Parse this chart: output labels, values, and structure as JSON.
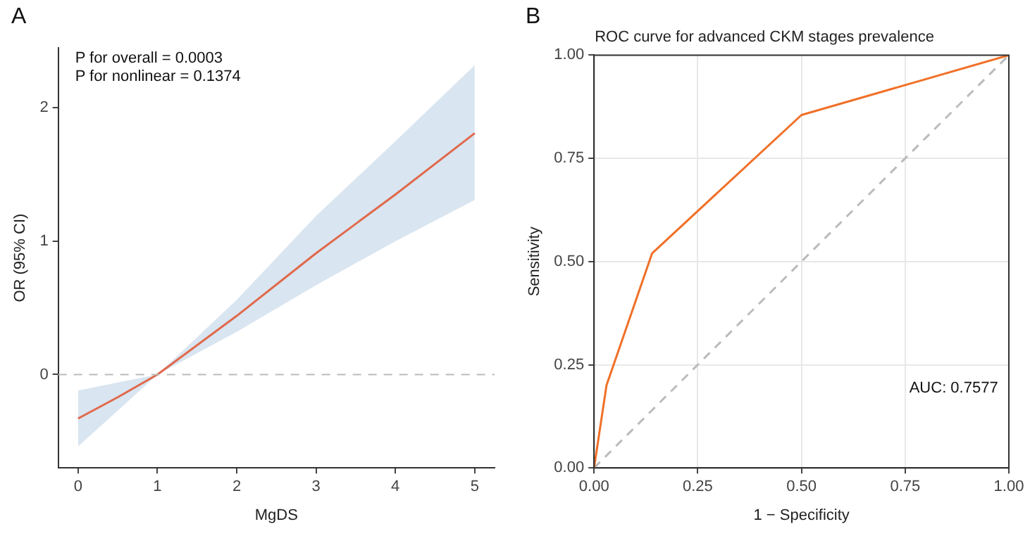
{
  "chart_data": [
    {
      "type": "line",
      "xlabel": "MgDS",
      "ylabel": "OR (95% CI)",
      "annotations": [
        "A",
        "P for overall = 0.0003",
        "P for nonlinear = 0.1374"
      ],
      "x": [
        0,
        0.5,
        1,
        2,
        3,
        4,
        5
      ],
      "series": [
        {
          "color": "#e0694c",
          "values": [
            -0.33,
            -0.17,
            0,
            0.44,
            0.91,
            1.35,
            1.81
          ],
          "lower": [
            -0.54,
            -0.27,
            0,
            0.32,
            0.67,
            1.0,
            1.31
          ],
          "upper": [
            -0.12,
            -0.06,
            0,
            0.56,
            1.19,
            1.75,
            2.32
          ]
        }
      ],
      "xlim": [
        -0.25,
        5.25
      ],
      "xticks": [
        0,
        1,
        2,
        3,
        4,
        5
      ],
      "ylim": [
        -0.7,
        2.45
      ],
      "yticks": [
        0,
        1,
        2
      ],
      "ref_lines": [
        {
          "axis": "y",
          "value": 0,
          "color": "#bbbbbb",
          "line_style": "dashed"
        }
      ],
      "grid": false,
      "legend": false,
      "marker": "none"
    },
    {
      "type": "line",
      "title": "ROC curve for advanced CKM stages prevalence",
      "xlabel": "1 − Specificity",
      "ylabel": "Sensitivity",
      "annotations": [
        "B",
        "AUC: 0.7577"
      ],
      "series": [
        {
          "color": "#f07028",
          "x": [
            0,
            0.03,
            0.14,
            0.5,
            1
          ],
          "values": [
            0,
            0.2,
            0.52,
            0.855,
            1
          ],
          "line_style": "solid"
        },
        {
          "color": "#bbbbbb",
          "x": [
            0,
            1
          ],
          "values": [
            0,
            1
          ],
          "line_style": "dashed"
        }
      ],
      "xlim": [
        0,
        1
      ],
      "xticks": [
        {
          "value": 0,
          "label": "0.00"
        },
        {
          "value": 0.25,
          "label": "0.25"
        },
        {
          "value": 0.5,
          "label": "0.50"
        },
        {
          "value": 0.75,
          "label": "0.75"
        },
        {
          "value": 1,
          "label": "1.00"
        }
      ],
      "ylim": [
        0,
        1
      ],
      "yticks": [
        {
          "value": 0,
          "label": "0.00"
        },
        {
          "value": 0.25,
          "label": "0.25"
        },
        {
          "value": 0.5,
          "label": "0.50"
        },
        {
          "value": 0.75,
          "label": "0.75"
        },
        {
          "value": 1,
          "label": "1.00"
        }
      ],
      "grid": true,
      "legend": false,
      "marker": "none"
    }
  ]
}
